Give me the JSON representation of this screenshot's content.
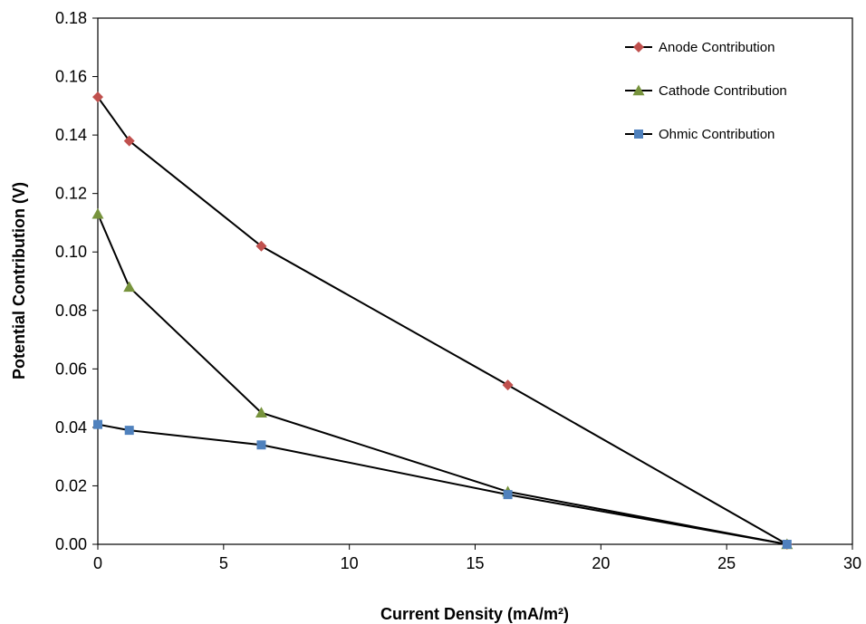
{
  "chart_data": {
    "type": "line",
    "title": "",
    "xlabel": "Current Density (mA/m²)",
    "ylabel": "Potential Contribution (V)",
    "xlim": [
      0,
      30
    ],
    "ylim": [
      0,
      0.18
    ],
    "x_ticks": [
      "0",
      "5",
      "10",
      "15",
      "20",
      "25",
      "30"
    ],
    "y_ticks": [
      "0.00",
      "0.02",
      "0.04",
      "0.06",
      "0.08",
      "0.10",
      "0.12",
      "0.14",
      "0.16",
      "0.18"
    ],
    "grid": false,
    "legend_position": "top-right",
    "series": [
      {
        "name": "Anode Contribution",
        "marker": "diamond",
        "color": "#C0504D",
        "x": [
          0,
          1.25,
          6.5,
          16.3,
          27.4
        ],
        "y": [
          0.153,
          0.138,
          0.102,
          0.0545,
          0.0
        ]
      },
      {
        "name": "Cathode Contribution",
        "marker": "triangle",
        "color": "#77933C",
        "x": [
          0,
          1.25,
          6.5,
          16.3,
          27.4
        ],
        "y": [
          0.113,
          0.088,
          0.045,
          0.018,
          0.0
        ]
      },
      {
        "name": "Ohmic Contribution",
        "marker": "square",
        "color": "#4F81BD",
        "x": [
          0,
          1.25,
          6.5,
          16.3,
          27.4
        ],
        "y": [
          0.041,
          0.039,
          0.034,
          0.017,
          0.0
        ]
      }
    ],
    "line_color": "#000000"
  }
}
